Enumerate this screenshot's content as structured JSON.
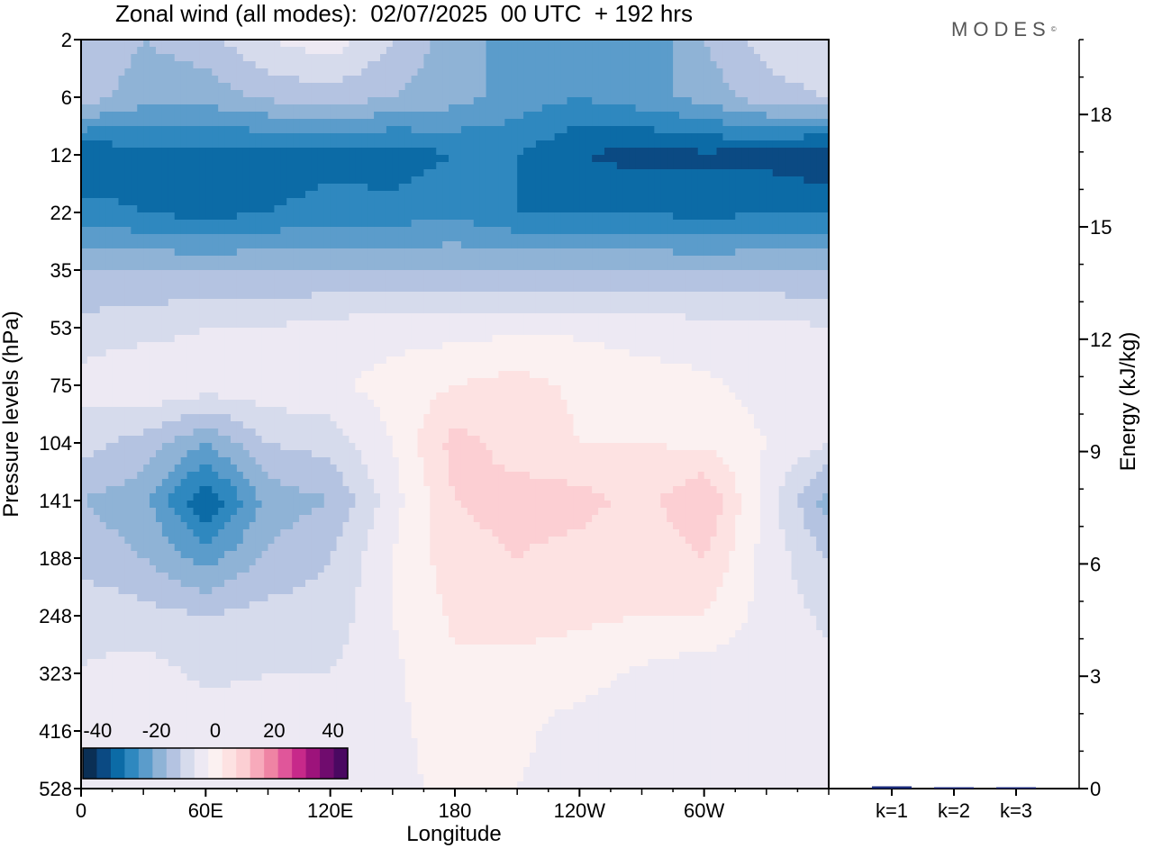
{
  "title": "Zonal wind (all modes):  02/07/2025  00 UTC  + 192 hrs",
  "brand": "MODES",
  "brand_mark": "©",
  "colors": {
    "scale": [
      "#0a2f55",
      "#0b4a83",
      "#0c6ba6",
      "#2f88bf",
      "#5b9ccb",
      "#8fb3d6",
      "#b4c3e1",
      "#d6dbec",
      "#ede9f3",
      "#fbf1f1",
      "#fde2e2",
      "#fccfd3",
      "#f7aabb",
      "#ef84a4",
      "#e0569a",
      "#c7298a",
      "#9d137b",
      "#700c6e",
      "#4a0861"
    ],
    "bar": "#1a2a7a"
  },
  "chart_data": [
    {
      "type": "heatmap",
      "title": "Zonal wind (all modes):  02/07/2025  00 UTC  + 192 hrs",
      "xlabel": "Longitude",
      "ylabel": "Pressure levels (hPa)",
      "xticks": [
        "0",
        "60E",
        "120E",
        "180",
        "120W",
        "60W"
      ],
      "xtick_values": [
        0,
        60,
        120,
        180,
        240,
        300
      ],
      "xlim": [
        0,
        360
      ],
      "yticks": [
        "2",
        "6",
        "12",
        "22",
        "35",
        "53",
        "75",
        "104",
        "141",
        "188",
        "248",
        "323",
        "416",
        "528"
      ],
      "colorbar": {
        "labels": [
          "-40",
          "-20",
          "0",
          "20",
          "40"
        ],
        "label_values": [
          -40,
          -20,
          0,
          20,
          40
        ],
        "range": [
          -45,
          45
        ],
        "step": 5
      },
      "lon": [
        0,
        30,
        60,
        90,
        120,
        150,
        180,
        210,
        240,
        270,
        300,
        330,
        360
      ],
      "values": [
        [
          -10,
          -15,
          -12,
          -5,
          -2,
          -10,
          -18,
          -22,
          -25,
          -25,
          -15,
          -8,
          -5
        ],
        [
          -12,
          -18,
          -18,
          -14,
          -12,
          -15,
          -18,
          -22,
          -25,
          -22,
          -18,
          -12,
          -10
        ],
        [
          -35,
          -32,
          -32,
          -33,
          -32,
          -33,
          -30,
          -30,
          -35,
          -37,
          -36,
          -37,
          -40
        ],
        [
          -28,
          -30,
          -32,
          -30,
          -28,
          -28,
          -26,
          -30,
          -30,
          -30,
          -32,
          -30,
          -30
        ],
        [
          -15,
          -15,
          -15,
          -15,
          -15,
          -15,
          -15,
          -15,
          -15,
          -15,
          -15,
          -15,
          -15
        ],
        [
          -8,
          -7,
          -5,
          -5,
          -3,
          -2,
          -2,
          -1,
          -1,
          -2,
          -3,
          -3,
          -5
        ],
        [
          -3,
          0,
          -2,
          -2,
          -1,
          2,
          5,
          7,
          4,
          2,
          1,
          -2,
          -4
        ],
        [
          -8,
          -12,
          -20,
          -10,
          -8,
          0,
          12,
          8,
          5,
          5,
          4,
          0,
          -5
        ],
        [
          -15,
          -18,
          -35,
          -18,
          -15,
          -2,
          10,
          12,
          12,
          8,
          15,
          -2,
          -18
        ],
        [
          -12,
          -15,
          -22,
          -14,
          -10,
          0,
          8,
          10,
          8,
          6,
          10,
          -2,
          -10
        ],
        [
          -6,
          -8,
          -10,
          -8,
          -8,
          0,
          6,
          8,
          6,
          5,
          5,
          -2,
          -6
        ],
        [
          -5,
          -3,
          -6,
          -5,
          -5,
          -1,
          4,
          2,
          2,
          -1,
          -3,
          -3,
          -4
        ],
        [
          -4,
          -3,
          -2,
          -3,
          -2,
          -1,
          2,
          1,
          -2,
          -3,
          -3,
          -3,
          -3
        ],
        [
          -3,
          -2,
          -1,
          -2,
          -2,
          -1,
          1,
          0,
          -2,
          -3,
          -3,
          -3,
          -3
        ]
      ]
    },
    {
      "type": "bar",
      "ylabel": "Energy (kJ/kg)",
      "categories": [
        "k=1",
        "k=2",
        "k=3"
      ],
      "values": [
        0.06,
        0.02,
        0.01
      ],
      "ylim": [
        0,
        20
      ],
      "yticks": [
        "0",
        "3",
        "6",
        "9",
        "12",
        "15",
        "18"
      ],
      "ytick_values": [
        0,
        3,
        6,
        9,
        12,
        15,
        18
      ]
    }
  ]
}
